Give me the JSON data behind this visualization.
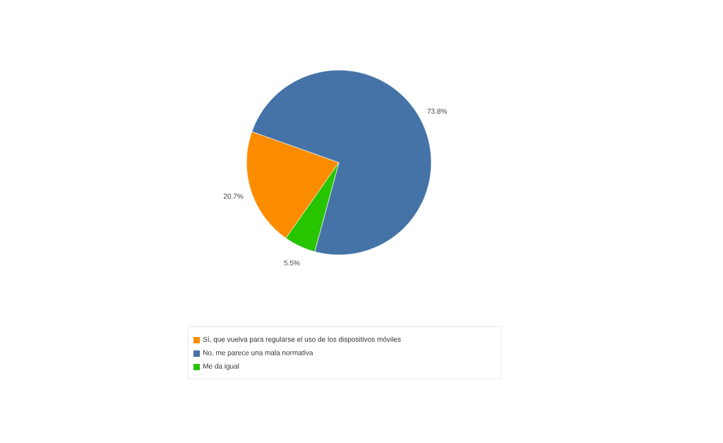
{
  "chart_data": {
    "type": "pie",
    "categories": [
      "Sí, que vuelva para regularse el uso de los dispositivos móviles",
      "No, me parece una mala normativa",
      "Me da igual"
    ],
    "values": [
      20.7,
      73.8,
      5.5
    ],
    "colors": [
      "#fb8c00",
      "#4573a7",
      "#27c400"
    ],
    "value_labels": [
      "20.7%",
      "73.8%",
      "5.5%"
    ],
    "legend": "bottom"
  }
}
